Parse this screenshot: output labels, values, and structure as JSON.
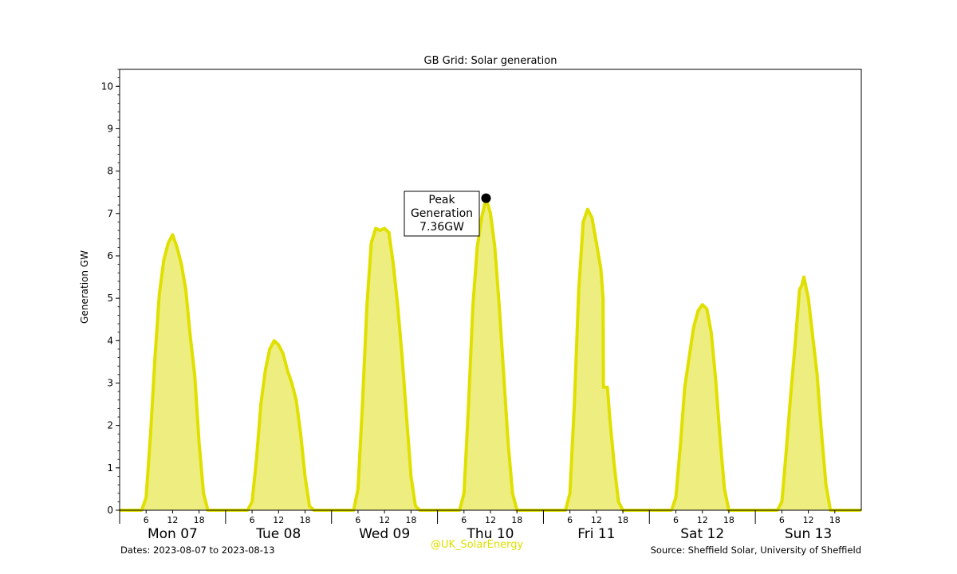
{
  "chart_data": {
    "type": "area",
    "title": "GB Grid: Solar generation",
    "xlabel": "",
    "ylabel": "Generation GW",
    "ylim": [
      0,
      10.4
    ],
    "yticks": [
      0,
      1,
      2,
      3,
      4,
      5,
      6,
      7,
      8,
      9,
      10
    ],
    "hour_ticks": [
      "6",
      "12",
      "18"
    ],
    "days": [
      "Mon 07",
      "Tue 08",
      "Wed 09",
      "Thu 10",
      "Fri 11",
      "Sat 12",
      "Sun 13"
    ],
    "x_unit": "hours from 2023-08-07 00:00",
    "xlim": [
      0,
      168
    ],
    "series": [
      {
        "name": "",
        "color": "#e0e000",
        "fill": "#eded80",
        "points": [
          [
            0,
            0
          ],
          [
            5,
            0
          ],
          [
            6,
            0.3
          ],
          [
            7,
            1.8
          ],
          [
            8,
            3.6
          ],
          [
            9,
            5.1
          ],
          [
            10,
            5.9
          ],
          [
            11,
            6.3
          ],
          [
            12,
            6.5
          ],
          [
            13,
            6.2
          ],
          [
            14,
            5.8
          ],
          [
            15,
            5.2
          ],
          [
            16,
            4.1
          ],
          [
            17,
            3.2
          ],
          [
            18,
            1.6
          ],
          [
            19,
            0.4
          ],
          [
            20,
            0
          ],
          [
            24,
            0
          ],
          [
            29,
            0
          ],
          [
            30,
            0.2
          ],
          [
            31,
            1.2
          ],
          [
            32,
            2.5
          ],
          [
            33,
            3.3
          ],
          [
            34,
            3.8
          ],
          [
            35,
            4.0
          ],
          [
            36,
            3.9
          ],
          [
            37,
            3.7
          ],
          [
            38,
            3.3
          ],
          [
            39,
            3.0
          ],
          [
            40,
            2.6
          ],
          [
            41,
            1.8
          ],
          [
            42,
            0.8
          ],
          [
            43,
            0.1
          ],
          [
            44,
            0
          ],
          [
            48,
            0
          ],
          [
            53,
            0
          ],
          [
            54,
            0.5
          ],
          [
            55,
            2.5
          ],
          [
            56,
            4.8
          ],
          [
            57,
            6.3
          ],
          [
            58,
            6.65
          ],
          [
            59,
            6.6
          ],
          [
            60,
            6.65
          ],
          [
            61,
            6.55
          ],
          [
            62,
            5.8
          ],
          [
            63,
            4.8
          ],
          [
            64,
            3.6
          ],
          [
            65,
            2.2
          ],
          [
            66,
            0.8
          ],
          [
            67,
            0.1
          ],
          [
            68,
            0
          ],
          [
            72,
            0
          ],
          [
            77,
            0
          ],
          [
            78,
            0.4
          ],
          [
            79,
            2.4
          ],
          [
            80,
            4.8
          ],
          [
            81,
            6.2
          ],
          [
            82,
            6.9
          ],
          [
            83,
            7.36
          ],
          [
            84,
            7.0
          ],
          [
            85,
            6.2
          ],
          [
            86,
            4.8
          ],
          [
            87,
            3.2
          ],
          [
            88,
            1.6
          ],
          [
            89,
            0.4
          ],
          [
            90,
            0
          ],
          [
            96,
            0
          ],
          [
            101,
            0
          ],
          [
            102,
            0.4
          ],
          [
            103,
            2.5
          ],
          [
            104,
            5.2
          ],
          [
            105,
            6.8
          ],
          [
            106,
            7.1
          ],
          [
            107,
            6.9
          ],
          [
            108,
            6.3
          ],
          [
            109,
            5.7
          ],
          [
            109.5,
            5.0
          ],
          [
            109.6,
            2.9
          ],
          [
            110.5,
            2.9
          ],
          [
            111,
            2.2
          ],
          [
            112,
            1.1
          ],
          [
            113,
            0.2
          ],
          [
            114,
            0
          ],
          [
            120,
            0
          ],
          [
            125,
            0
          ],
          [
            126,
            0.3
          ],
          [
            127,
            1.5
          ],
          [
            128,
            2.9
          ],
          [
            129,
            3.6
          ],
          [
            130,
            4.3
          ],
          [
            131,
            4.7
          ],
          [
            132,
            4.85
          ],
          [
            133,
            4.75
          ],
          [
            134,
            4.2
          ],
          [
            135,
            3.1
          ],
          [
            136,
            1.7
          ],
          [
            137,
            0.5
          ],
          [
            138,
            0
          ],
          [
            144,
            0
          ],
          [
            149,
            0
          ],
          [
            150,
            0.2
          ],
          [
            151,
            1.4
          ],
          [
            152,
            2.7
          ],
          [
            153,
            3.9
          ],
          [
            154,
            5.2
          ],
          [
            154.5,
            5.3
          ],
          [
            155,
            5.5
          ],
          [
            156,
            5.0
          ],
          [
            157,
            4.1
          ],
          [
            158,
            3.2
          ],
          [
            159,
            1.8
          ],
          [
            160,
            0.6
          ],
          [
            161,
            0
          ],
          [
            168,
            0
          ]
        ]
      }
    ],
    "peak": {
      "x": 83,
      "y": 7.36,
      "label_lines": [
        "Peak",
        "Generation",
        "7.36GW"
      ]
    },
    "grid": false,
    "legend": "none"
  },
  "footer": {
    "dates": "Dates: 2023-08-07 to 2023-08-13",
    "handle": "@UK_SolarEnergy",
    "source": "Source: Sheffield Solar, University of Sheffield"
  }
}
